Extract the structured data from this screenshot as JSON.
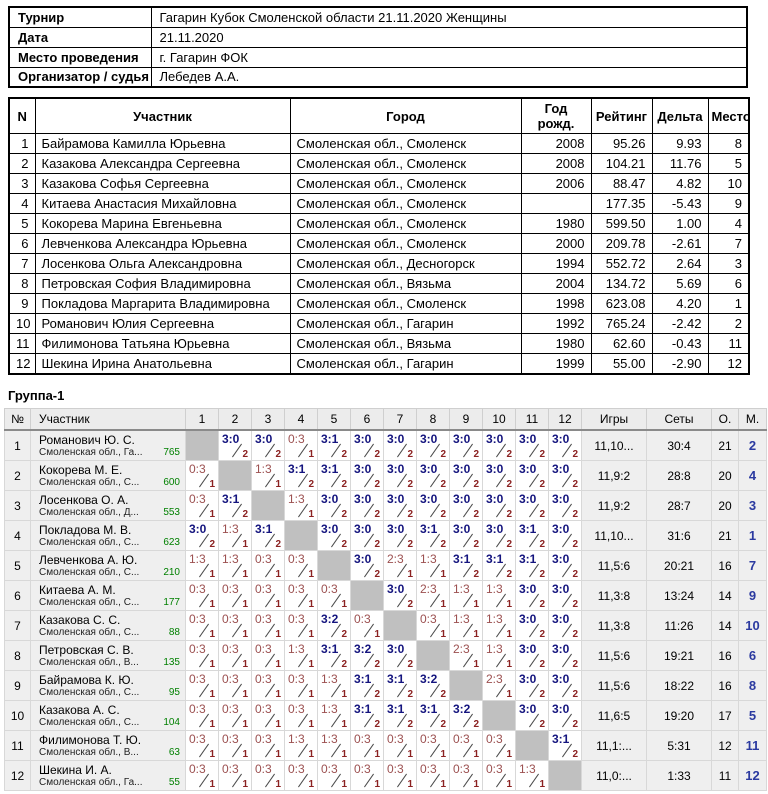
{
  "info": {
    "rows": [
      {
        "label": "Турнир",
        "value": "Гагарин Кубок Смоленской области 21.11.2020 Женщины"
      },
      {
        "label": "Дата",
        "value": "21.11.2020"
      },
      {
        "label": "Место проведения",
        "value": "г. Гагарин ФОК"
      },
      {
        "label": "Организатор / судья",
        "value": "Лебедев А.А."
      }
    ]
  },
  "participants": {
    "headers": [
      "N",
      "Участник",
      "Город",
      "Год рожд.",
      "Рейтинг",
      "Дельта",
      "Место"
    ],
    "rows": [
      [
        "1",
        "Байрамова Камилла Юрьевна",
        "Смоленская обл., Смоленск",
        "2008",
        "95.26",
        "9.93",
        "8"
      ],
      [
        "2",
        "Казакова Александра Сергеевна",
        "Смоленская обл., Смоленск",
        "2008",
        "104.21",
        "11.76",
        "5"
      ],
      [
        "3",
        "Казакова Софья Сергеевна",
        "Смоленская обл., Смоленск",
        "2006",
        "88.47",
        "4.82",
        "10"
      ],
      [
        "4",
        "Китаева Анастасия Михайловна",
        "Смоленская обл., Смоленск",
        "",
        "177.35",
        "-5.43",
        "9"
      ],
      [
        "5",
        "Кокорева Марина Евгеньевна",
        "Смоленская обл., Смоленск",
        "1980",
        "599.50",
        "1.00",
        "4"
      ],
      [
        "6",
        "Левченкова Александра Юрьевна",
        "Смоленская обл., Смоленск",
        "2000",
        "209.78",
        "-2.61",
        "7"
      ],
      [
        "7",
        "Лосенкова Ольга Александровна",
        "Смоленская обл., Десногорск",
        "1994",
        "552.72",
        "2.64",
        "3"
      ],
      [
        "8",
        "Петровская София Владимировна",
        "Смоленская обл., Вязьма",
        "2004",
        "134.72",
        "5.69",
        "6"
      ],
      [
        "9",
        "Покладова Маргарита Владимировна",
        "Смоленская обл., Смоленск",
        "1998",
        "623.08",
        "4.20",
        "1"
      ],
      [
        "10",
        "Романович Юлия Сергеевна",
        "Смоленская обл., Гагарин",
        "1992",
        "765.24",
        "-2.42",
        "2"
      ],
      [
        "11",
        "Филимонова Татьяна Юрьевна",
        "Смоленская обл., Вязьма",
        "1980",
        "62.60",
        "-0.43",
        "11"
      ],
      [
        "12",
        "Шекина Ирина Анатольевна",
        "Смоленская обл., Гагарин",
        "1999",
        "55.00",
        "-2.90",
        "12"
      ]
    ]
  },
  "group": {
    "title": "Группа-1",
    "headers": {
      "num": "№",
      "name": "Участник",
      "games": "Игры",
      "sets": "Сеты",
      "points": "О.",
      "place": "М."
    },
    "col_headers": [
      "1",
      "2",
      "3",
      "4",
      "5",
      "6",
      "7",
      "8",
      "9",
      "10",
      "11",
      "12"
    ],
    "rows": [
      {
        "num": "1",
        "name": "Романович Ю. С.",
        "region": "Смоленская обл., Га...",
        "rating": "765",
        "results": [
          null,
          "3:0/2",
          "3:0/2",
          "0:3/1",
          "3:1/2",
          "3:0/2",
          "3:0/2",
          "3:0/2",
          "3:0/2",
          "3:0/2",
          "3:0/2",
          "3:0/2"
        ],
        "games": "11,10...",
        "sets": "30:4",
        "points": "21",
        "place": "2"
      },
      {
        "num": "2",
        "name": "Кокорева М. Е.",
        "region": "Смоленская обл., С...",
        "rating": "600",
        "results": [
          "0:3/1",
          null,
          "1:3/1",
          "3:1/2",
          "3:1/2",
          "3:0/2",
          "3:0/2",
          "3:0/2",
          "3:0/2",
          "3:0/2",
          "3:0/2",
          "3:0/2"
        ],
        "games": "11,9:2",
        "sets": "28:8",
        "points": "20",
        "place": "4"
      },
      {
        "num": "3",
        "name": "Лосенкова О. А.",
        "region": "Смоленская обл., Д...",
        "rating": "553",
        "results": [
          "0:3/1",
          "3:1/2",
          null,
          "1:3/1",
          "3:0/2",
          "3:0/2",
          "3:0/2",
          "3:0/2",
          "3:0/2",
          "3:0/2",
          "3:0/2",
          "3:0/2"
        ],
        "games": "11,9:2",
        "sets": "28:7",
        "points": "20",
        "place": "3"
      },
      {
        "num": "4",
        "name": "Покладова М. В.",
        "region": "Смоленская обл., С...",
        "rating": "623",
        "results": [
          "3:0/2",
          "1:3/1",
          "3:1/2",
          null,
          "3:0/2",
          "3:0/2",
          "3:0/2",
          "3:1/2",
          "3:0/2",
          "3:0/2",
          "3:1/2",
          "3:0/2"
        ],
        "games": "11,10...",
        "sets": "31:6",
        "points": "21",
        "place": "1"
      },
      {
        "num": "5",
        "name": "Левченкова А. Ю.",
        "region": "Смоленская обл., С...",
        "rating": "210",
        "results": [
          "1:3/1",
          "1:3/1",
          "0:3/1",
          "0:3/1",
          null,
          "3:0/2",
          "2:3/1",
          "1:3/1",
          "3:1/2",
          "3:1/2",
          "3:1/2",
          "3:0/2"
        ],
        "games": "11,5:6",
        "sets": "20:21",
        "points": "16",
        "place": "7"
      },
      {
        "num": "6",
        "name": "Китаева А. М.",
        "region": "Смоленская обл., С...",
        "rating": "177",
        "results": [
          "0:3/1",
          "0:3/1",
          "0:3/1",
          "0:3/1",
          "0:3/1",
          null,
          "3:0/2",
          "2:3/1",
          "1:3/1",
          "1:3/1",
          "3:0/2",
          "3:0/2"
        ],
        "games": "11,3:8",
        "sets": "13:24",
        "points": "14",
        "place": "9"
      },
      {
        "num": "7",
        "name": "Казакова С. С.",
        "region": "Смоленская обл., С...",
        "rating": "88",
        "results": [
          "0:3/1",
          "0:3/1",
          "0:3/1",
          "0:3/1",
          "3:2/2",
          "0:3/1",
          null,
          "0:3/1",
          "1:3/1",
          "1:3/1",
          "3:0/2",
          "3:0/2"
        ],
        "games": "11,3:8",
        "sets": "11:26",
        "points": "14",
        "place": "10"
      },
      {
        "num": "8",
        "name": "Петровская С. В.",
        "region": "Смоленская обл., В...",
        "rating": "135",
        "results": [
          "0:3/1",
          "0:3/1",
          "0:3/1",
          "1:3/1",
          "3:1/2",
          "3:2/2",
          "3:0/2",
          null,
          "2:3/1",
          "1:3/1",
          "3:0/2",
          "3:0/2"
        ],
        "games": "11,5:6",
        "sets": "19:21",
        "points": "16",
        "place": "6"
      },
      {
        "num": "9",
        "name": "Байрамова К. Ю.",
        "region": "Смоленская обл., С...",
        "rating": "95",
        "results": [
          "0:3/1",
          "0:3/1",
          "0:3/1",
          "0:3/1",
          "1:3/1",
          "3:1/2",
          "3:1/2",
          "3:2/2",
          null,
          "2:3/1",
          "3:0/2",
          "3:0/2"
        ],
        "games": "11,5:6",
        "sets": "18:22",
        "points": "16",
        "place": "8"
      },
      {
        "num": "10",
        "name": "Казакова А. С.",
        "region": "Смоленская обл., С...",
        "rating": "104",
        "results": [
          "0:3/1",
          "0:3/1",
          "0:3/1",
          "0:3/1",
          "1:3/1",
          "3:1/2",
          "3:1/2",
          "3:1/2",
          "3:2/2",
          null,
          "3:0/2",
          "3:0/2"
        ],
        "games": "11,6:5",
        "sets": "19:20",
        "points": "17",
        "place": "5"
      },
      {
        "num": "11",
        "name": "Филимонова Т. Ю.",
        "region": "Смоленская обл., В...",
        "rating": "63",
        "results": [
          "0:3/1",
          "0:3/1",
          "0:3/1",
          "1:3/1",
          "1:3/1",
          "0:3/1",
          "0:3/1",
          "0:3/1",
          "0:3/1",
          "0:3/1",
          null,
          "3:1/2"
        ],
        "games": "11,1:...",
        "sets": "5:31",
        "points": "12",
        "place": "11"
      },
      {
        "num": "12",
        "name": "Шекина И. А.",
        "region": "Смоленская обл., Га...",
        "rating": "55",
        "results": [
          "0:3/1",
          "0:3/1",
          "0:3/1",
          "0:3/1",
          "0:3/1",
          "0:3/1",
          "0:3/1",
          "0:3/1",
          "0:3/1",
          "0:3/1",
          "1:3/1",
          null
        ],
        "games": "11,0:...",
        "sets": "1:33",
        "points": "11",
        "place": "12"
      }
    ]
  },
  "colors": {
    "win_score": "#14147e",
    "loss_score": "#9c5050",
    "points_sub": "#8b2121",
    "rating": "#008000",
    "place": "#2b3aa0",
    "self_cell": "#c0c0c0"
  }
}
